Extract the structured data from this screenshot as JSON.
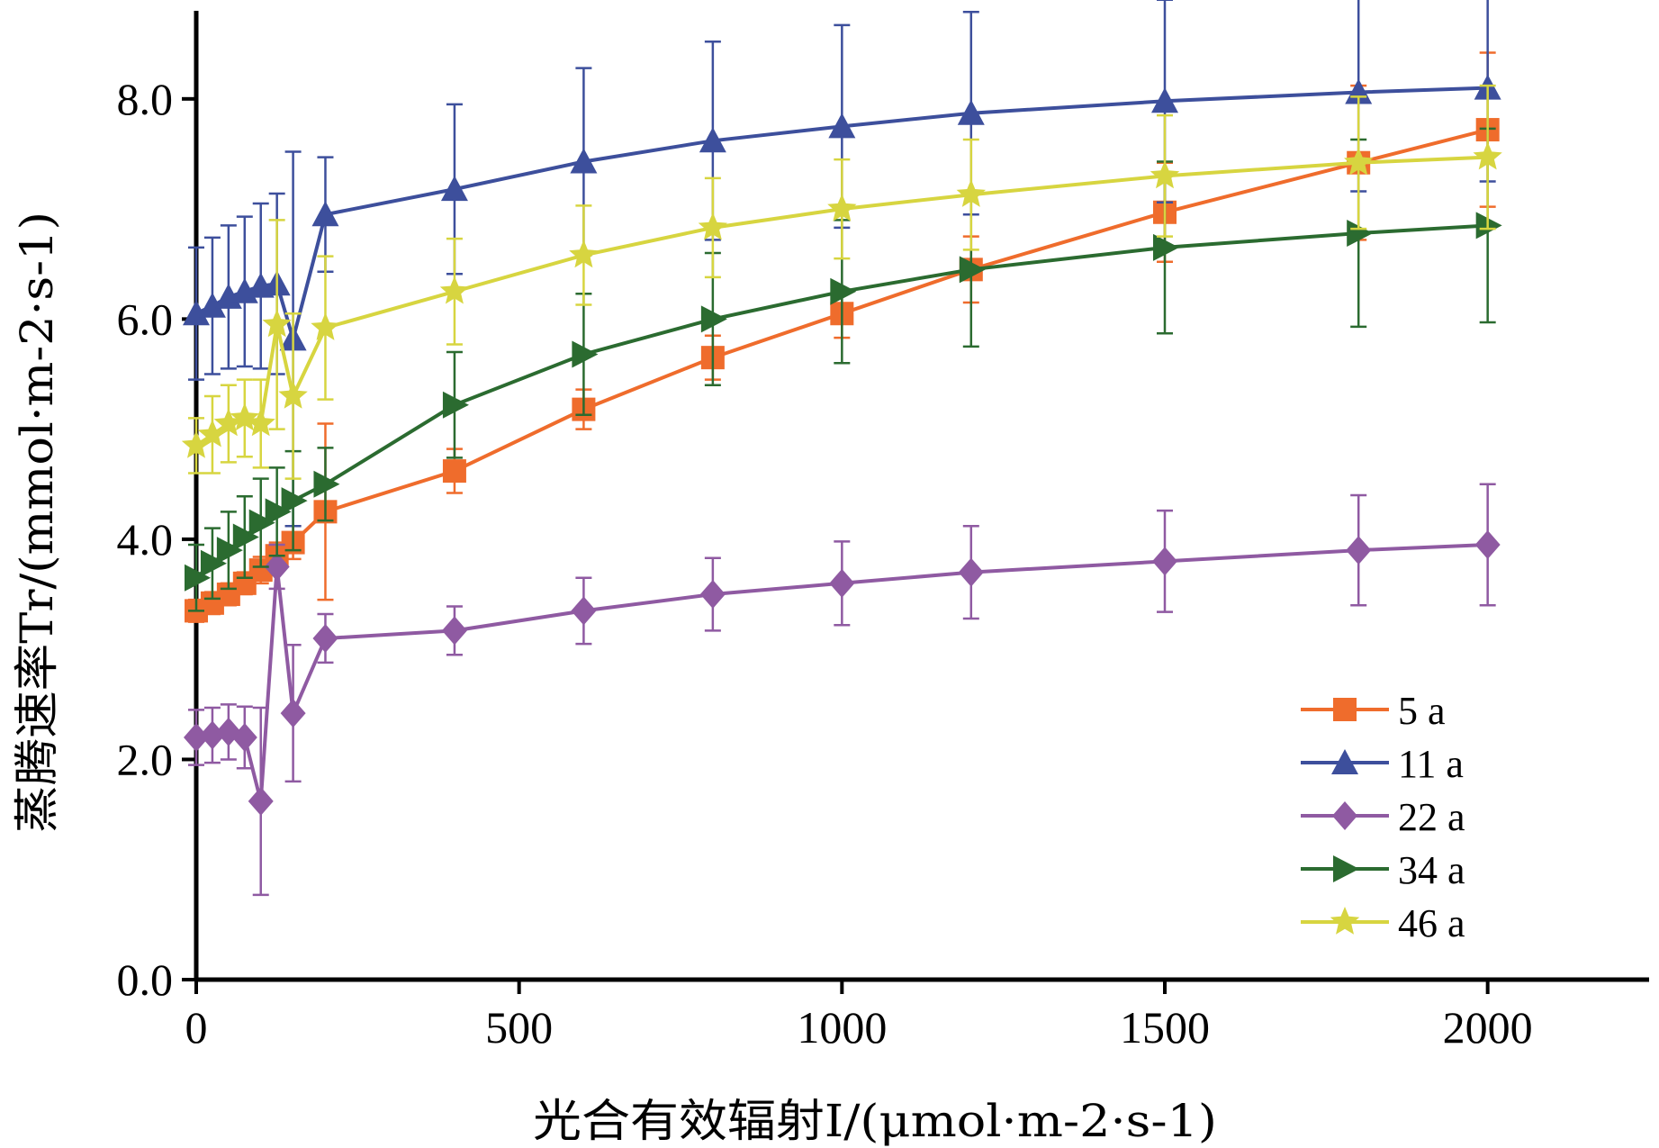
{
  "chart_data": {
    "type": "line",
    "xlabel": "光合有效辐射I/(μmol·m-2·s-1)",
    "ylabel": "蒸腾速率Tr/(mmol·m-2·s-1)",
    "xlim": [
      0,
      2250
    ],
    "ylim": [
      0,
      8.8
    ],
    "xticks": [
      "0",
      "500",
      "1000",
      "1500",
      "2000"
    ],
    "yticks": [
      "0.0",
      "2.0",
      "4.0",
      "6.0",
      "8.0"
    ],
    "grid": false,
    "legend_position": "bottom-right",
    "x": [
      0,
      25,
      50,
      75,
      100,
      125,
      150,
      200,
      400,
      600,
      800,
      1000,
      1200,
      1500,
      1800,
      2000
    ],
    "series": [
      {
        "name": "5 a",
        "color": "#ef6c2c",
        "marker": "square",
        "values": [
          3.35,
          3.42,
          3.5,
          3.6,
          3.72,
          3.85,
          3.97,
          4.25,
          4.62,
          5.18,
          5.65,
          6.05,
          6.45,
          6.97,
          7.42,
          7.72
        ],
        "errors": [
          0.1,
          0.1,
          0.1,
          0.1,
          0.12,
          0.12,
          0.15,
          0.8,
          0.2,
          0.18,
          0.2,
          0.22,
          0.3,
          0.45,
          0.7,
          0.7
        ]
      },
      {
        "name": "11 a",
        "color": "#3d4f9c",
        "marker": "triangle",
        "values": [
          6.05,
          6.12,
          6.2,
          6.25,
          6.3,
          6.32,
          5.82,
          6.95,
          7.18,
          7.43,
          7.62,
          7.75,
          7.87,
          7.98,
          8.06,
          8.1
        ],
        "errors": [
          0.6,
          0.62,
          0.65,
          0.68,
          0.75,
          0.82,
          1.7,
          0.52,
          0.77,
          0.85,
          0.9,
          0.92,
          0.92,
          0.92,
          0.9,
          0.85
        ]
      },
      {
        "name": "22 a",
        "color": "#8f5aa2",
        "marker": "diamond",
        "values": [
          2.2,
          2.22,
          2.25,
          2.2,
          1.62,
          3.75,
          2.42,
          3.1,
          3.17,
          3.35,
          3.5,
          3.6,
          3.7,
          3.8,
          3.9,
          3.95
        ],
        "errors": [
          0.25,
          0.25,
          0.25,
          0.28,
          0.85,
          0.2,
          0.62,
          0.22,
          0.22,
          0.3,
          0.33,
          0.38,
          0.42,
          0.46,
          0.5,
          0.55
        ]
      },
      {
        "name": "34 a",
        "color": "#2b6b30",
        "marker": "triangle-right",
        "values": [
          3.65,
          3.78,
          3.9,
          4.02,
          4.15,
          4.25,
          4.35,
          4.5,
          5.22,
          5.68,
          6.0,
          6.25,
          6.45,
          6.65,
          6.78,
          6.85
        ],
        "errors": [
          0.3,
          0.32,
          0.35,
          0.37,
          0.4,
          0.4,
          0.45,
          0.33,
          0.48,
          0.55,
          0.6,
          0.65,
          0.7,
          0.78,
          0.85,
          0.88
        ]
      },
      {
        "name": "46 a",
        "color": "#d7d540",
        "marker": "star",
        "values": [
          4.85,
          4.95,
          5.05,
          5.1,
          5.05,
          5.95,
          5.3,
          5.92,
          6.25,
          6.58,
          6.83,
          7.0,
          7.13,
          7.3,
          7.42,
          7.47
        ],
        "errors": [
          0.25,
          0.35,
          0.35,
          0.35,
          0.4,
          0.95,
          0.75,
          0.65,
          0.48,
          0.45,
          0.45,
          0.45,
          0.5,
          0.55,
          0.6,
          0.65
        ]
      }
    ]
  }
}
